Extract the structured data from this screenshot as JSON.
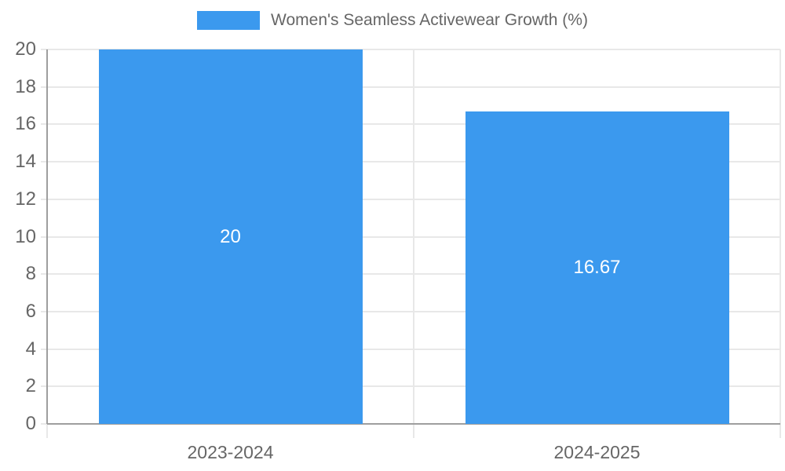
{
  "chart_data": {
    "type": "bar",
    "title": "Women's Seamless Activewear Growth (%)",
    "categories": [
      "2023-2024",
      "2024-2025"
    ],
    "values": [
      20,
      16.67
    ],
    "value_labels": [
      "20",
      "16.67"
    ],
    "xlabel": "",
    "ylabel": "",
    "ylim": [
      0,
      20
    ],
    "ytick_step": 2,
    "ytick_labels": [
      "0",
      "2",
      "4",
      "6",
      "8",
      "10",
      "12",
      "14",
      "16",
      "18",
      "20"
    ],
    "grid": true,
    "legend_position": "top",
    "colors": {
      "bar": "#3B99EE",
      "grid": "#E8E8E8",
      "axis": "#9E9E9E",
      "tick_text": "#666666",
      "bar_label_text": "#FFFFFF"
    }
  },
  "legend": {
    "label": "Women's Seamless Activewear Growth (%)"
  }
}
